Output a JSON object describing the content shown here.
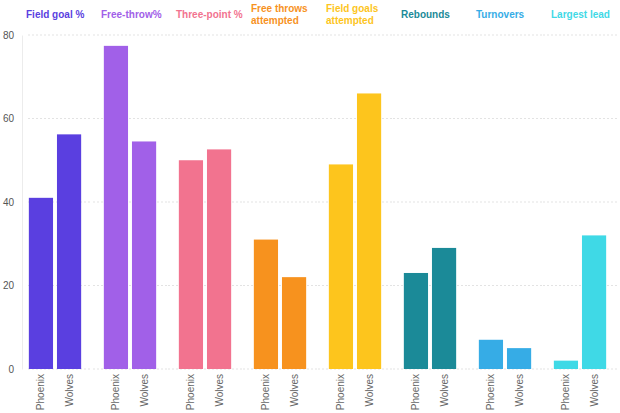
{
  "chart_data": [
    {
      "type": "bar",
      "title": "Field goal %",
      "categories": [
        "Phoenix",
        "Wolves"
      ],
      "values": [
        41,
        56.2
      ],
      "color": "#5a3fe0",
      "ylim": [
        0,
        80
      ],
      "yticks": [
        0,
        20,
        40,
        60,
        80
      ],
      "grid": true
    },
    {
      "type": "bar",
      "title": "Free-throw%",
      "categories": [
        "Phoenix",
        "Wolves"
      ],
      "values": [
        77.4,
        54.5
      ],
      "color": "#a160e8",
      "ylim": [
        0,
        80
      ],
      "yticks": [
        0,
        20,
        40,
        60,
        80
      ],
      "grid": true,
      "tick_labels": "x"
    },
    {
      "type": "bar",
      "title": "Three-point %",
      "categories": [
        "Phoenix",
        "Wolves"
      ],
      "values": [
        50,
        52.6
      ],
      "color": "#f2738f",
      "ylim": [
        0,
        80
      ],
      "yticks": [
        0,
        20,
        40,
        60,
        80
      ],
      "grid": true,
      "tick_labels": "x"
    },
    {
      "type": "bar",
      "title": "Free throws attempted",
      "categories": [
        "Phoenix",
        "Wolves"
      ],
      "values": [
        31,
        22
      ],
      "color": "#f7921e",
      "ylim": [
        0,
        80
      ],
      "yticks": [
        0,
        20,
        40,
        60,
        80
      ],
      "grid": true,
      "tick_labels": "x"
    },
    {
      "type": "bar",
      "title": "Field goals attempted",
      "categories": [
        "Phoenix",
        "Wolves"
      ],
      "values": [
        49,
        66
      ],
      "color": "#fdc51d",
      "ylim": [
        0,
        80
      ],
      "yticks": [
        0,
        20,
        40,
        60,
        80
      ],
      "grid": true,
      "tick_labels": "x"
    },
    {
      "type": "bar",
      "title": "Rebounds",
      "categories": [
        "Phoenix",
        "Wolves"
      ],
      "values": [
        23,
        29
      ],
      "color": "#1b8a98",
      "ylim": [
        0,
        80
      ],
      "yticks": [
        0,
        20,
        40,
        60,
        80
      ],
      "grid": true,
      "tick_labels": "x"
    },
    {
      "type": "bar",
      "title": "Turnovers",
      "categories": [
        "Phoenix",
        "Wolves"
      ],
      "values": [
        7,
        5
      ],
      "color": "#36ace6",
      "ylim": [
        0,
        80
      ],
      "yticks": [
        0,
        20,
        40,
        60,
        80
      ],
      "grid": true,
      "tick_labels": "x"
    },
    {
      "type": "bar",
      "title": "Largest lead",
      "categories": [
        "Phoenix",
        "Wolves"
      ],
      "values": [
        2,
        32
      ],
      "color": "#3fd9e6",
      "ylim": [
        0,
        80
      ],
      "yticks": [
        0,
        20,
        40,
        60,
        80
      ],
      "grid": true,
      "tick_labels": "x"
    }
  ]
}
